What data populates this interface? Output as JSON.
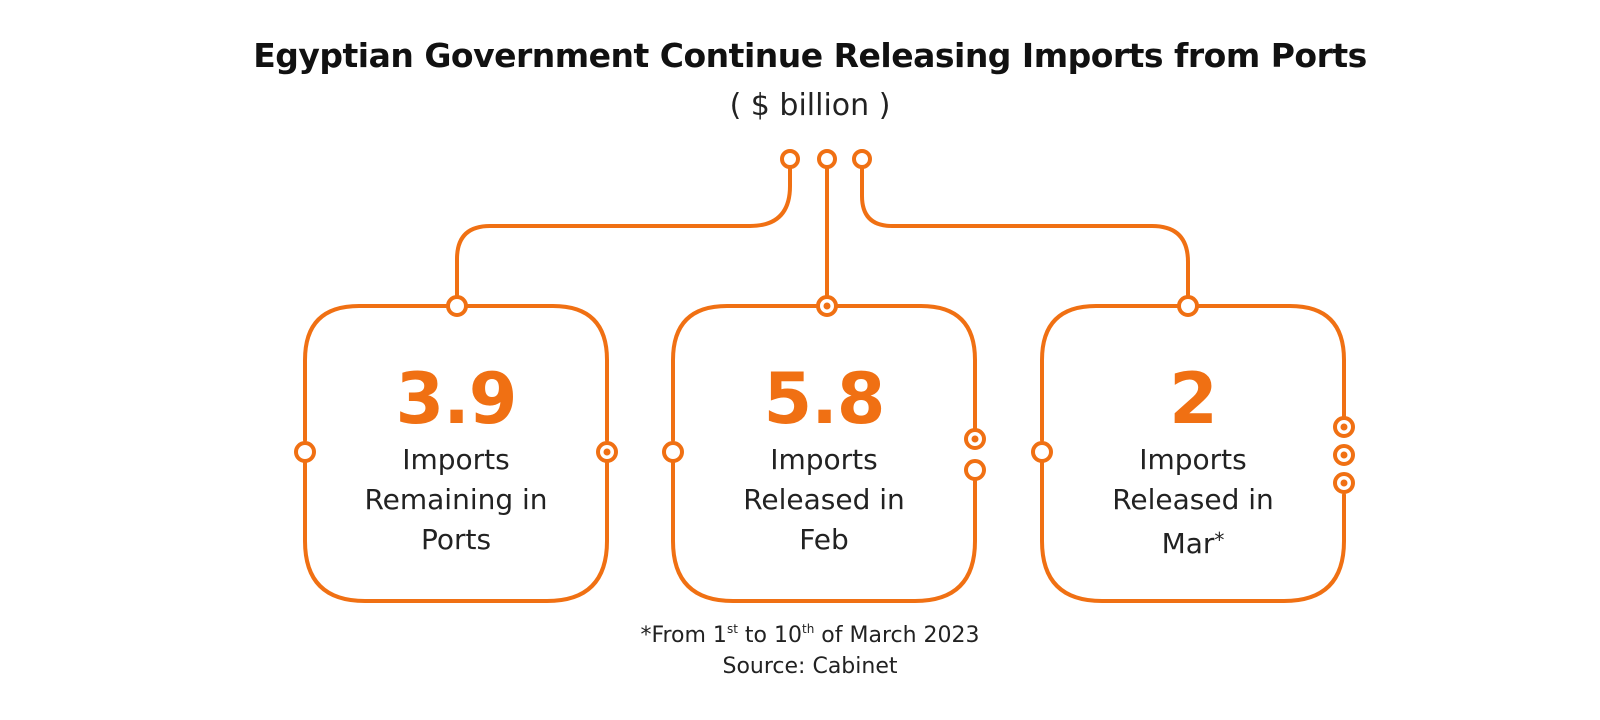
{
  "title": "Egyptian Government Continue Releasing Imports from Ports",
  "subtitle": "( $ billion )",
  "accent_color": "#f07013",
  "cards": [
    {
      "value": "3.9",
      "line1": "Imports",
      "line2": "Remaining in",
      "line3": "Ports",
      "mark": ""
    },
    {
      "value": "5.8",
      "line1": "Imports",
      "line2": "Released in",
      "line3": "Feb",
      "mark": ""
    },
    {
      "value": "2",
      "line1": "Imports",
      "line2": "Released in",
      "line3": "Mar",
      "mark": "*"
    }
  ],
  "footnote": {
    "prefix": "*From 1",
    "sup1": "st",
    "middle": " to 10",
    "sup2": "th",
    "suffix": " of March 2023",
    "source": "Source: Cabinet"
  }
}
